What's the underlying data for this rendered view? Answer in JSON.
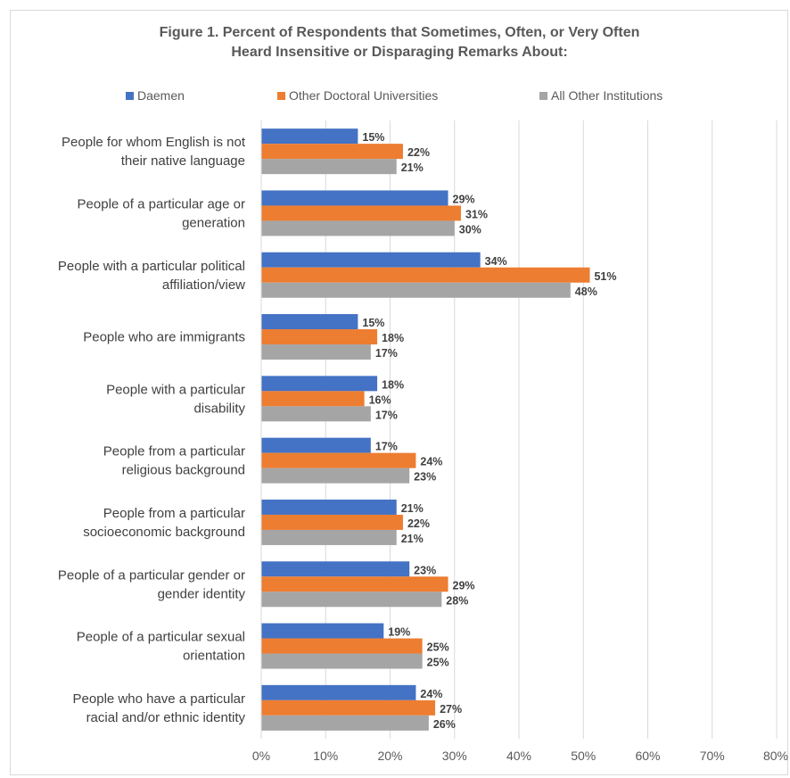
{
  "chart_data": {
    "type": "bar",
    "orientation": "horizontal",
    "title": "Figure 1. Percent of Respondents that Sometimes, Often, or Very Often Heard Insensitive or Disparaging Remarks About:",
    "title_lines": [
      "Figure 1. Percent of Respondents that Sometimes, Often, or Very Often",
      "Heard Insensitive or Disparaging Remarks About:"
    ],
    "categories": [
      [
        "People for whom English is not",
        "their native language"
      ],
      [
        "People of a particular age or",
        "generation"
      ],
      [
        "People with a particular political",
        "affiliation/view"
      ],
      [
        "People who are immigrants"
      ],
      [
        "People with a particular",
        "disability"
      ],
      [
        "People from a particular",
        "religious background"
      ],
      [
        "People from a particular",
        "socioeconomic background"
      ],
      [
        "People of a particular gender or",
        "gender identity"
      ],
      [
        "People of a particular sexual",
        "orientation"
      ],
      [
        "People who have a particular",
        "racial and/or ethnic identity"
      ]
    ],
    "series": [
      {
        "name": "Daemen",
        "color": "#4472c4",
        "values": [
          15,
          29,
          34,
          15,
          18,
          17,
          21,
          23,
          19,
          24
        ]
      },
      {
        "name": "Other Doctoral Universities",
        "color": "#ed7d31",
        "values": [
          22,
          31,
          51,
          18,
          16,
          24,
          22,
          29,
          25,
          27
        ]
      },
      {
        "name": "All Other Institutions",
        "color": "#a5a5a5",
        "values": [
          21,
          30,
          48,
          17,
          17,
          23,
          21,
          28,
          25,
          26
        ]
      }
    ],
    "xlim": [
      0,
      80
    ],
    "x_ticks": [
      0,
      10,
      20,
      30,
      40,
      50,
      60,
      70,
      80
    ],
    "tick_suffix": "%",
    "value_suffix": "%",
    "grid": true,
    "legend_position": "top",
    "xlabel": "",
    "ylabel": ""
  }
}
